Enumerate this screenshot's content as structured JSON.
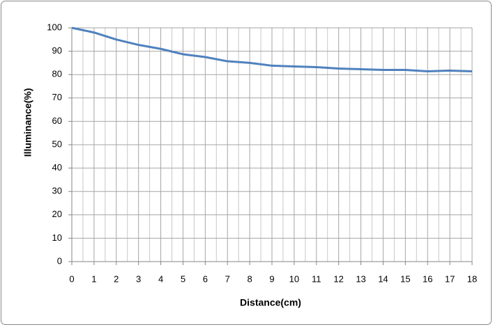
{
  "chart_data": {
    "type": "line",
    "x_label": "Distance(cm)",
    "y_label": "Illuminance(%)",
    "x": [
      0,
      1,
      2,
      3,
      4,
      5,
      6,
      7,
      8,
      9,
      10,
      11,
      12,
      13,
      14,
      15,
      16,
      17,
      18
    ],
    "series": [
      {
        "color": "#4f81bd",
        "values": [
          100,
          98,
          95,
          92.7,
          91,
          88.7,
          87.5,
          85.7,
          85,
          83.8,
          83.5,
          83.2,
          82.6,
          82.3,
          82,
          82,
          81.4,
          81.7,
          81.4
        ]
      }
    ],
    "xlim": [
      0,
      18
    ],
    "xticks": [
      0,
      1,
      2,
      3,
      4,
      5,
      6,
      7,
      8,
      9,
      10,
      11,
      12,
      13,
      14,
      15,
      16,
      17,
      18
    ],
    "ylim": [
      0,
      100
    ],
    "yticks": [
      0,
      10,
      20,
      30,
      40,
      50,
      60,
      70,
      80,
      90,
      100
    ],
    "grid": true
  }
}
